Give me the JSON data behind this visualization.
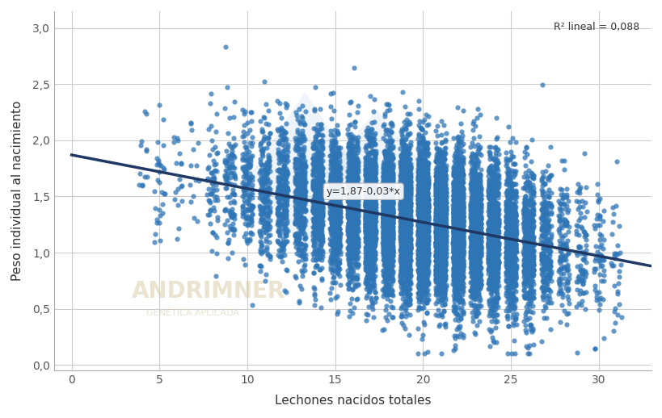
{
  "xlabel": "Lechones nacidos totales",
  "ylabel": "Peso individual al nacimiento",
  "r2_text": "R² lineal = 0,088",
  "equation_text": "y=1,87-0,03*x",
  "intercept": 1.87,
  "slope": -0.03,
  "xlim": [
    -1,
    33
  ],
  "ylim": [
    -0.05,
    3.15
  ],
  "xticks": [
    0,
    5,
    10,
    15,
    20,
    25,
    30
  ],
  "yticks": [
    0.0,
    0.5,
    1.0,
    1.5,
    2.0,
    2.5,
    3.0
  ],
  "ytick_labels": [
    "0,0",
    "0,5",
    "1,0",
    "1,5",
    "2,0",
    "2,5",
    "3,0"
  ],
  "scatter_color": "#2E75B6",
  "line_color": "#1F3864",
  "background_color": "#FFFFFF",
  "grid_color": "#CCCCCC",
  "scatter_alpha": 0.75,
  "scatter_size": 20
}
